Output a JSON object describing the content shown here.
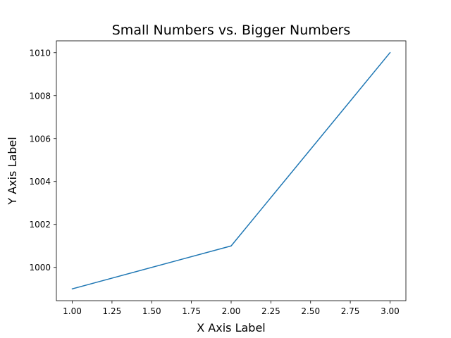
{
  "chart_data": {
    "type": "line",
    "title": "Small Numbers vs. Bigger Numbers",
    "xlabel": "X Axis Label",
    "ylabel": "Y Axis Label",
    "x": [
      1,
      2,
      3
    ],
    "series": [
      {
        "values": [
          999,
          1001,
          1010
        ],
        "color": "#1f77b4"
      }
    ],
    "xlim": [
      0.9,
      3.1
    ],
    "ylim": [
      998.45,
      1010.55
    ],
    "xticks": [
      1.0,
      1.25,
      1.5,
      1.75,
      2.0,
      2.25,
      2.5,
      2.75,
      3.0
    ],
    "xtick_labels": [
      "1.00",
      "1.25",
      "1.50",
      "1.75",
      "2.00",
      "2.25",
      "2.50",
      "2.75",
      "3.00"
    ],
    "yticks": [
      1000,
      1002,
      1004,
      1006,
      1008,
      1010
    ],
    "ytick_labels": [
      "1000",
      "1002",
      "1004",
      "1006",
      "1008",
      "1010"
    ],
    "grid": false,
    "legend": "none"
  }
}
